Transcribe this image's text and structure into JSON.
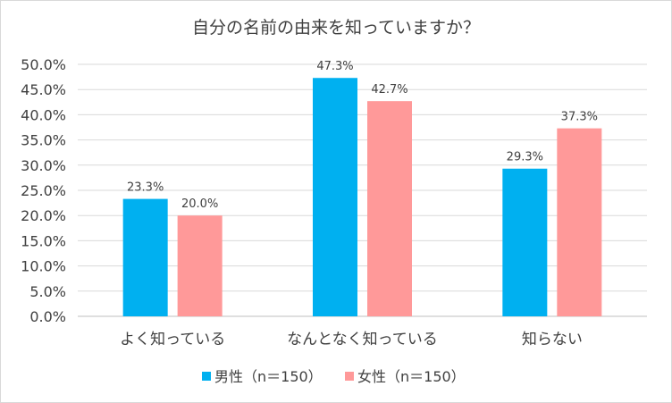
{
  "chart_data": {
    "type": "bar",
    "title": "自分の名前の由来を知っていますか？",
    "categories": [
      "よく知っている",
      "なんとなく知っている",
      "知らない"
    ],
    "series": [
      {
        "name": "男性（n＝150）",
        "color": "#00b0f0",
        "values": [
          23.3,
          47.3,
          29.3
        ]
      },
      {
        "name": "女性（n＝150）",
        "color": "#ff9999",
        "values": [
          20.0,
          42.7,
          37.3
        ]
      }
    ],
    "ylim": [
      0,
      50
    ],
    "yticks": [
      0,
      5,
      10,
      15,
      20,
      25,
      30,
      35,
      40,
      45,
      50
    ],
    "ytick_labels": [
      "0.0%",
      "5.0%",
      "10.0%",
      "15.0%",
      "20.0%",
      "25.0%",
      "30.0%",
      "35.0%",
      "40.0%",
      "45.0%",
      "50.0%"
    ],
    "data_labels": [
      [
        "23.3%",
        "20.0%"
      ],
      [
        "47.3%",
        "42.7%"
      ],
      [
        "29.3%",
        "37.3%"
      ]
    ],
    "grid": true,
    "legend_position": "bottom",
    "xlabel": "",
    "ylabel": ""
  }
}
